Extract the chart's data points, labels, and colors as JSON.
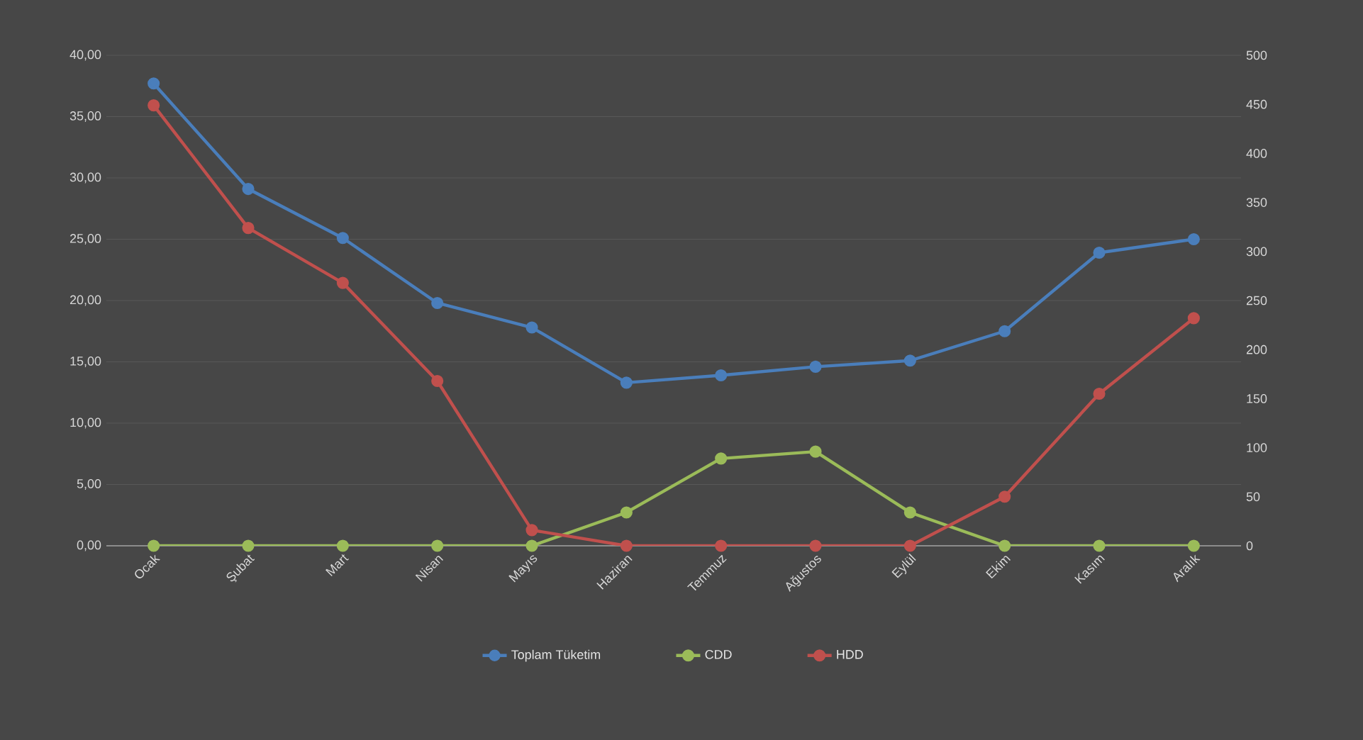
{
  "chart_data": {
    "type": "line",
    "categories": [
      "Ocak",
      "Şubat",
      "Mart",
      "Nisan",
      "Mayıs",
      "Haziran",
      "Temmuz",
      "Ağustos",
      "Eylül",
      "Ekim",
      "Kasım",
      "Aralık"
    ],
    "series": [
      {
        "name": "Toplam Tüketim",
        "color": "#4a7ebb",
        "values": [
          37.7,
          29.1,
          25.1,
          19.8,
          17.8,
          13.3,
          13.9,
          14.6,
          15.1,
          17.5,
          23.9,
          25.0
        ]
      },
      {
        "name": "CDD",
        "color": "#9bbb59",
        "axis": "y2",
        "values": [
          0,
          0,
          0,
          0,
          0,
          34,
          89,
          96,
          34,
          0,
          0,
          0
        ]
      },
      {
        "name": "HDD",
        "color": "#c0504d",
        "axis": "y2",
        "values": [
          449,
          324,
          268,
          168,
          16,
          0,
          0,
          0,
          0,
          50,
          155,
          232
        ]
      }
    ],
    "ylim": [
      0,
      40
    ],
    "yticks": [
      {
        "value": 0,
        "label": "0,00"
      },
      {
        "value": 5,
        "label": "5,00"
      },
      {
        "value": 10,
        "label": "10,00"
      },
      {
        "value": 15,
        "label": "15,00"
      },
      {
        "value": 20,
        "label": "20,00"
      },
      {
        "value": 25,
        "label": "25,00"
      },
      {
        "value": 30,
        "label": "30,00"
      },
      {
        "value": 35,
        "label": "35,00"
      },
      {
        "value": 40,
        "label": "40,00"
      }
    ],
    "y2lim": [
      0,
      500
    ],
    "y2ticks": [
      0,
      50,
      100,
      150,
      200,
      250,
      300,
      350,
      400,
      450,
      500
    ],
    "grid": "y",
    "legend": "bottom",
    "marker": "circle",
    "line_style": "solid"
  }
}
